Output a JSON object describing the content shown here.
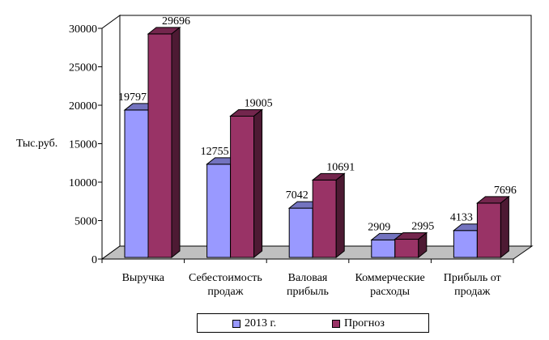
{
  "chart_data": {
    "type": "bar",
    "ylabel": "Тыс.руб.",
    "ylim": [
      0,
      30000
    ],
    "yticks": [
      0,
      5000,
      10000,
      15000,
      20000,
      25000,
      30000
    ],
    "categories": [
      [
        "Выручка"
      ],
      [
        "Себестоимость",
        "продаж"
      ],
      [
        "Валовая",
        "прибыль"
      ],
      [
        "Коммерческие",
        "расходы"
      ],
      [
        "Прибыль от",
        "продаж"
      ]
    ],
    "series": [
      {
        "name": "2013 г.",
        "values": [
          19797,
          12755,
          7042,
          2909,
          4133
        ],
        "color": "#9999FF"
      },
      {
        "name": "Прогноз",
        "values": [
          29696,
          19005,
          10691,
          2995,
          7696
        ],
        "color": "#993366"
      }
    ],
    "grid": false,
    "legend_position": "bottom"
  }
}
